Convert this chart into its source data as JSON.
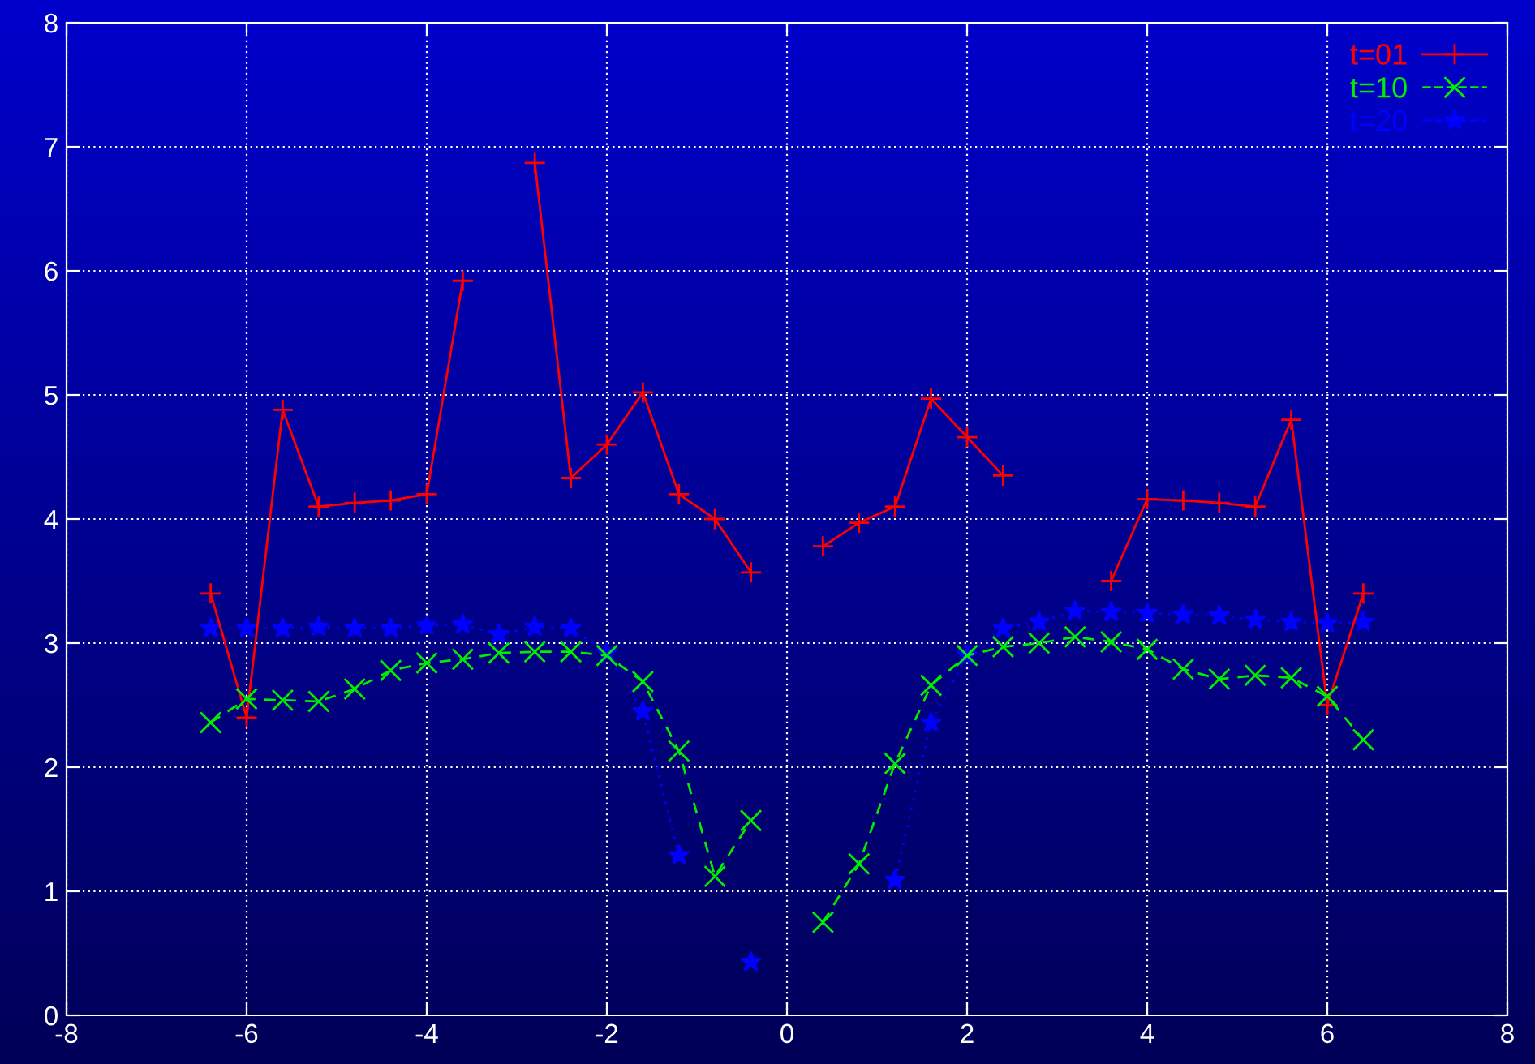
{
  "chart_data": {
    "type": "line",
    "x": [
      -6.4,
      -6.0,
      -5.6,
      -5.2,
      -4.8,
      -4.4,
      -4.0,
      -3.6,
      -3.2,
      -2.8,
      -2.4,
      -2.0,
      -1.6,
      -1.2,
      -0.8,
      -0.4,
      0.0,
      0.4,
      0.8,
      1.2,
      1.6,
      2.0,
      2.4,
      2.8,
      3.2,
      3.6,
      4.0,
      4.4,
      4.8,
      5.2,
      5.6,
      6.0,
      6.4
    ],
    "series": [
      {
        "name": "t=01",
        "color": "#ff0000",
        "marker": "cross",
        "line_style": "solid",
        "values": [
          3.4,
          2.4,
          4.88,
          4.1,
          4.13,
          4.15,
          4.2,
          5.92,
          null,
          6.87,
          4.33,
          4.6,
          5.02,
          4.2,
          4.0,
          3.57,
          null,
          3.78,
          3.97,
          4.1,
          4.97,
          4.66,
          4.35,
          null,
          null,
          3.5,
          4.16,
          4.15,
          4.13,
          4.1,
          4.8,
          2.5,
          3.4
        ]
      },
      {
        "name": "t=10",
        "color": "#00ee00",
        "marker": "x",
        "line_style": "dashed",
        "values": [
          2.36,
          2.55,
          2.54,
          2.53,
          2.63,
          2.78,
          2.84,
          2.87,
          2.92,
          2.93,
          2.93,
          2.9,
          2.69,
          2.13,
          1.12,
          1.57,
          null,
          0.75,
          1.22,
          2.03,
          2.66,
          2.9,
          2.97,
          3.0,
          3.05,
          3.01,
          2.95,
          2.79,
          2.71,
          2.74,
          2.72,
          2.57,
          2.22
        ]
      },
      {
        "name": "t=20",
        "color": "#0000ff",
        "marker": "star",
        "line_style": "dotted",
        "values": [
          3.12,
          3.12,
          3.12,
          3.13,
          3.12,
          3.12,
          3.14,
          3.15,
          3.07,
          3.13,
          3.12,
          2.92,
          2.45,
          1.29,
          null,
          0.43,
          null,
          null,
          null,
          1.09,
          2.36,
          2.9,
          3.12,
          3.17,
          3.26,
          3.25,
          3.24,
          3.23,
          3.22,
          3.19,
          3.17,
          3.16,
          3.17
        ]
      }
    ],
    "xlim": [
      -8,
      8
    ],
    "ylim": [
      0,
      8
    ],
    "xticks": [
      -8,
      -6,
      -4,
      -2,
      0,
      2,
      4,
      6,
      8
    ],
    "yticks": [
      0,
      1,
      2,
      3,
      4,
      5,
      6,
      7,
      8
    ],
    "grid": true,
    "legend": "top right"
  }
}
